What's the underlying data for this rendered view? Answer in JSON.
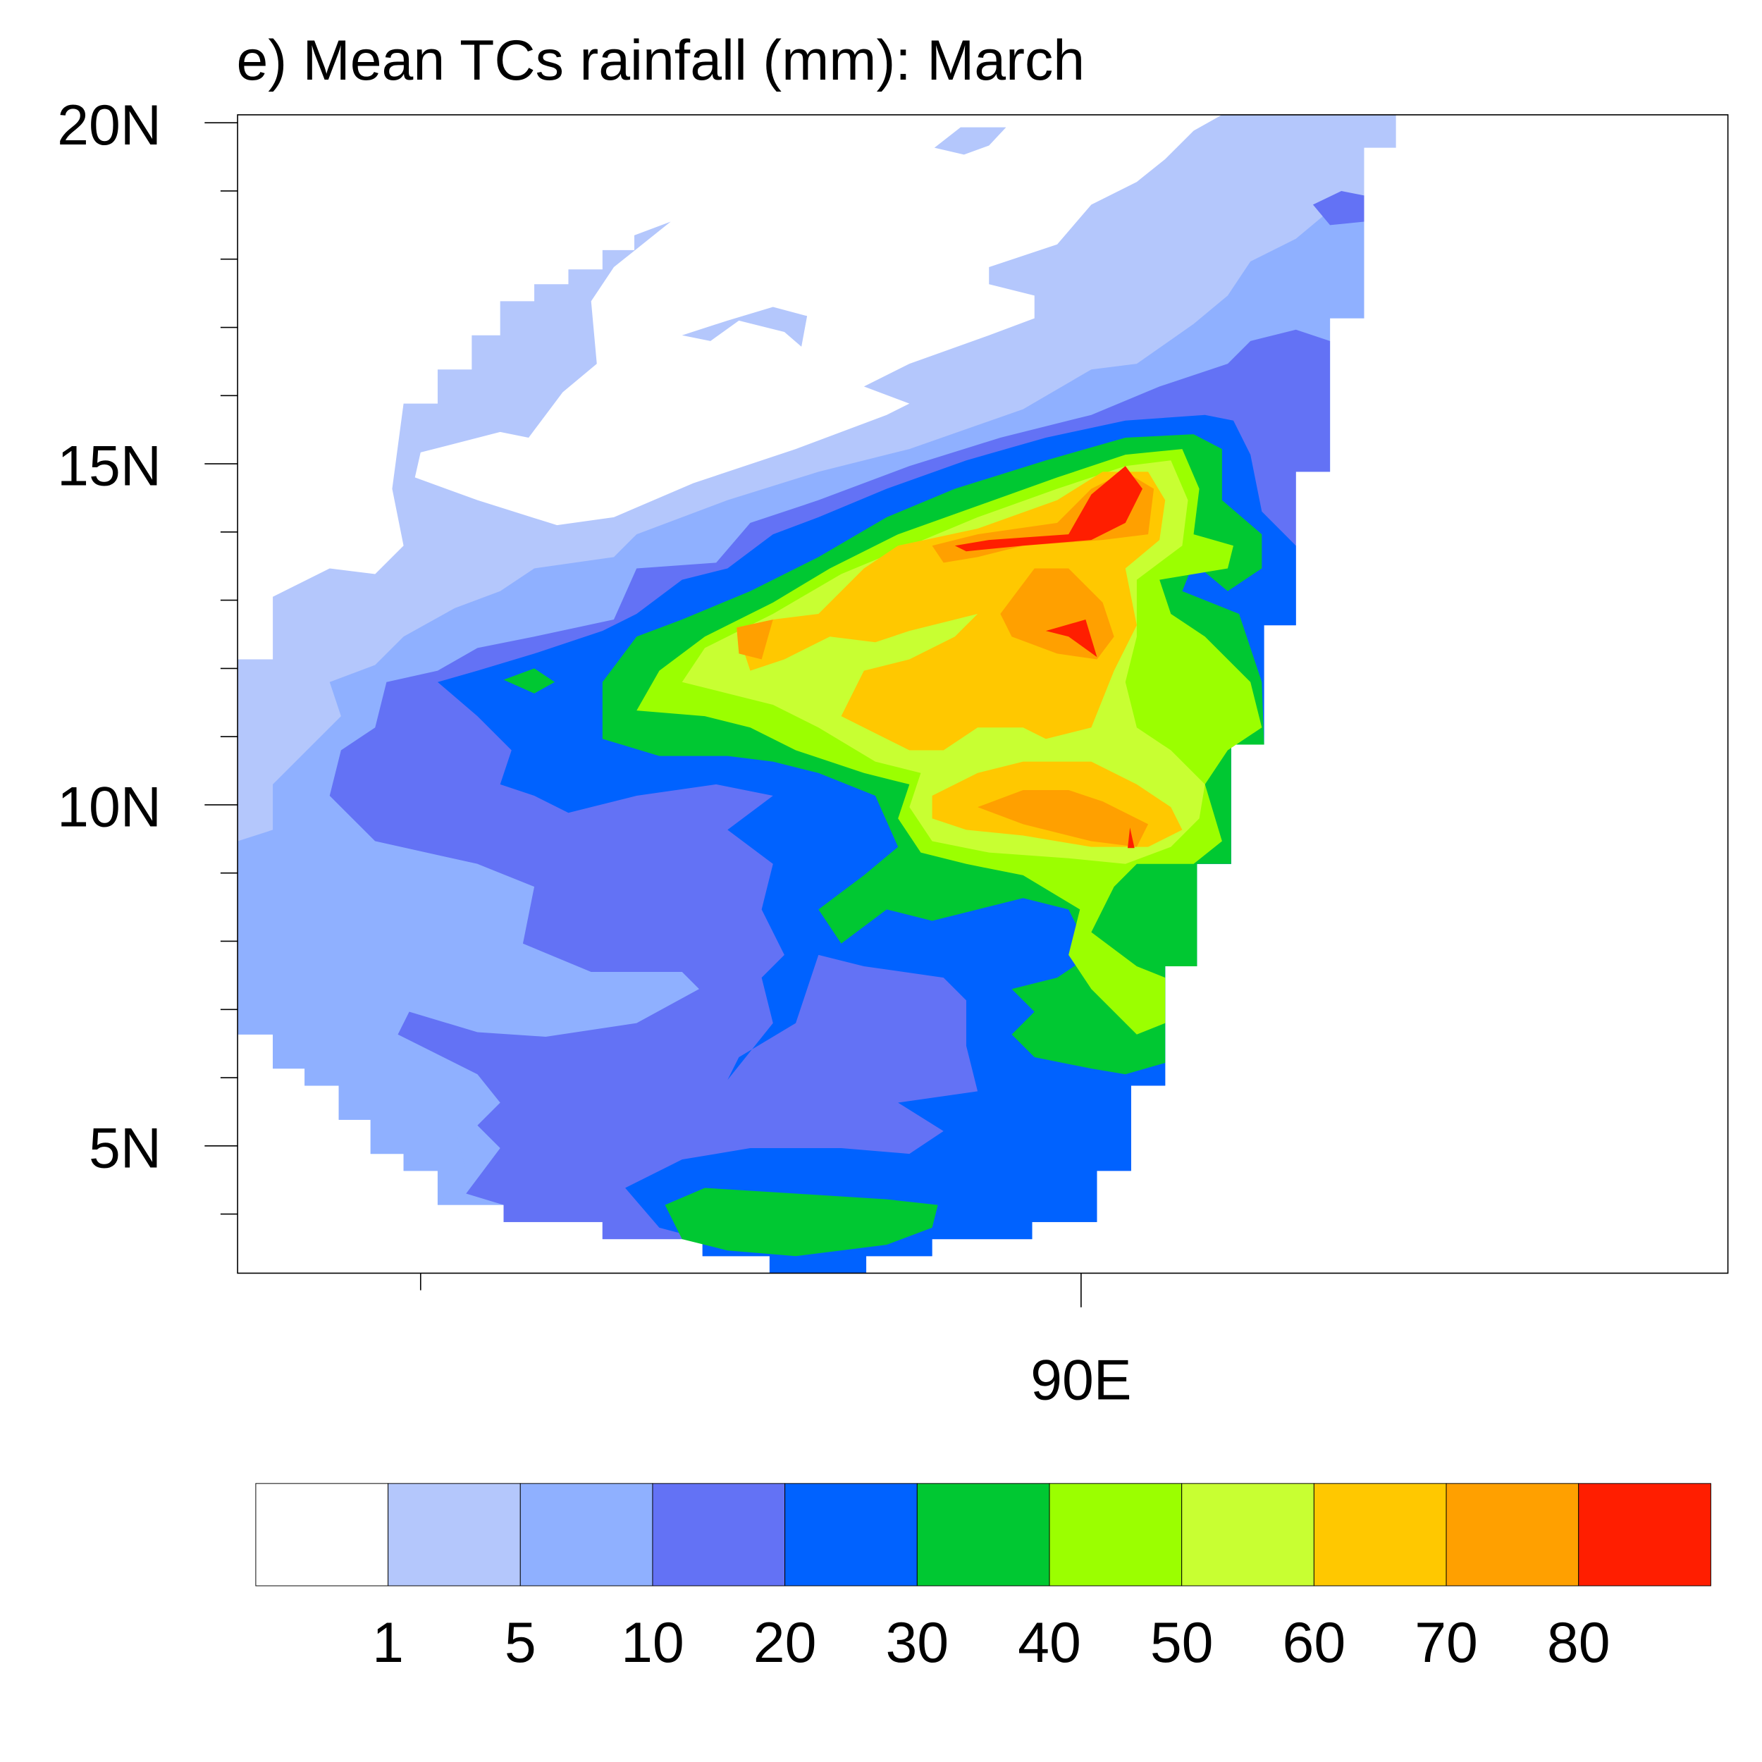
{
  "chart_data": {
    "type": "heatmap",
    "subtype": "filled-contour-map",
    "title": "e) Mean TCs rainfall (mm): March",
    "lat_ticks": [
      "20N",
      "15N",
      "10N",
      "5N"
    ],
    "lat_values": [
      20,
      15,
      10,
      5
    ],
    "lon_ticks": [
      "90E"
    ],
    "lon_values": [
      90
    ],
    "lat_range": [
      3.1,
      20.1
    ],
    "variable": "Mean TCs rainfall",
    "units": "mm",
    "colorbar": {
      "levels": [
        "1",
        "5",
        "10",
        "20",
        "30",
        "40",
        "50",
        "60",
        "70",
        "80"
      ],
      "colors": [
        "#FFFFFF",
        "#B4C7FC",
        "#8FB0FF",
        "#6372F5",
        "#0062FF",
        "#00C832",
        "#9BFF00",
        "#C8FF32",
        "#FFC800",
        "#FFA000",
        "#FF1E00"
      ]
    },
    "features": {
      "max_region": "about 13-15N, just east of 90E, above 80 mm",
      "secondary_max": "about 9.5-10N near 91E, 70-80 mm",
      "dry_region": "northwest, 15-20N, below 1 mm"
    }
  }
}
